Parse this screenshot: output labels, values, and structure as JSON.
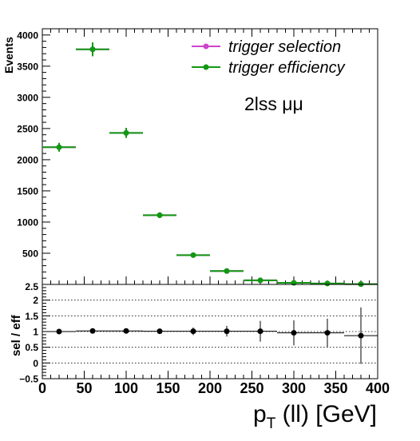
{
  "chart_data": [
    {
      "type": "scatter",
      "panel": "main",
      "ylabel": "Events",
      "annotation": "2lss μμ",
      "ylim": [
        0,
        4100
      ],
      "xlim": [
        0,
        400
      ],
      "yticks": [
        500,
        1000,
        1500,
        2000,
        2500,
        3000,
        3500,
        4000
      ],
      "grid": false,
      "legend": "top-right",
      "bin_edges": [
        0,
        40,
        80,
        120,
        160,
        200,
        240,
        280,
        320,
        360,
        400
      ],
      "series": [
        {
          "name": "trigger selection",
          "color": "#cc44cc",
          "values": [
            2200,
            3770,
            2430,
            1110,
            470,
            215,
            65,
            25,
            15,
            5
          ],
          "errors": [
            70,
            110,
            80,
            45,
            25,
            15,
            8,
            5,
            4,
            2
          ]
        },
        {
          "name": "trigger efficiency",
          "color": "#119911",
          "values": [
            2200,
            3770,
            2430,
            1110,
            470,
            215,
            65,
            25,
            15,
            5
          ],
          "errors": [
            70,
            110,
            80,
            45,
            25,
            15,
            8,
            5,
            4,
            2
          ]
        }
      ]
    },
    {
      "type": "scatter",
      "panel": "ratio",
      "ylabel": "sel / eff",
      "xlabel": "p_T (ll) [GeV]",
      "xlabel_main": "p",
      "xlabel_sub": "T",
      "xlabel_rest": " (ll) [GeV]",
      "ylim": [
        -0.5,
        2.5
      ],
      "yticks": [
        -0.5,
        0,
        0.5,
        1,
        1.5,
        2
      ],
      "yticks_labels": [
        "−0.5",
        "0",
        "0.5",
        "1",
        "1.5",
        "2"
      ],
      "top_tick_label": "2.5",
      "grid_lines": [
        0,
        0.5,
        1,
        1.5,
        2
      ],
      "xticks": [
        0,
        50,
        100,
        150,
        200,
        250,
        300,
        350,
        400
      ],
      "xlim": [
        0,
        400
      ],
      "bin_edges": [
        0,
        40,
        80,
        120,
        160,
        200,
        240,
        280,
        320,
        360,
        400
      ],
      "series": [
        {
          "name": "",
          "color": "#000000",
          "values": [
            1.0,
            1.02,
            1.02,
            1.01,
            1.01,
            1.01,
            1.01,
            0.96,
            0.96,
            0.87
          ],
          "errors": [
            0.05,
            0.05,
            0.05,
            0.07,
            0.12,
            0.17,
            0.33,
            0.4,
            0.45,
            0.9
          ]
        }
      ]
    }
  ]
}
